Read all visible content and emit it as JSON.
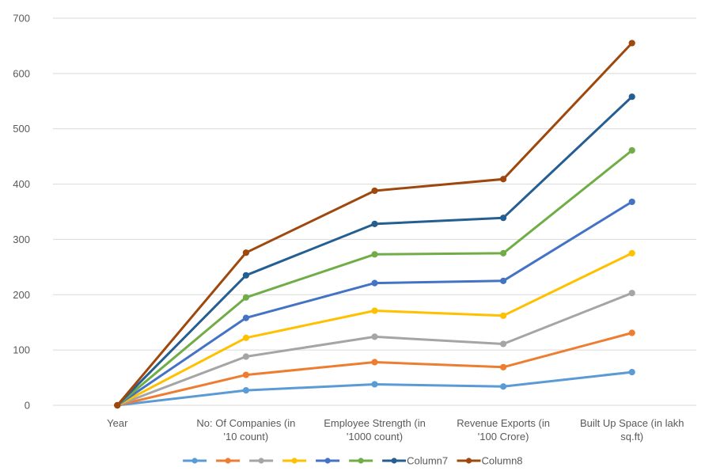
{
  "chart_data": {
    "type": "line",
    "title": "",
    "xlabel": "",
    "ylabel": "",
    "ylim": [
      0,
      700
    ],
    "yticks": [
      "0",
      "100",
      "200",
      "300",
      "400",
      "500",
      "600",
      "700"
    ],
    "grid": true,
    "legend_position": "bottom",
    "categories": [
      [
        "Year"
      ],
      [
        "No: Of Companies (in",
        "'10 count)"
      ],
      [
        "Employee Strength (in",
        "'1000 count)"
      ],
      [
        "Revenue Exports (in",
        "'100 Crore)"
      ],
      [
        "Built Up Space (in lakh",
        "sq.ft)"
      ]
    ],
    "series": [
      {
        "name": "",
        "color": "#5B9BD5",
        "values": [
          0,
          27,
          38,
          34,
          60
        ]
      },
      {
        "name": "",
        "color": "#ED7D31",
        "values": [
          0,
          55,
          78,
          69,
          131
        ]
      },
      {
        "name": "",
        "color": "#A5A5A5",
        "values": [
          0,
          88,
          124,
          111,
          203
        ]
      },
      {
        "name": "",
        "color": "#FFC000",
        "values": [
          0,
          122,
          171,
          162,
          275
        ]
      },
      {
        "name": "",
        "color": "#4472C4",
        "values": [
          0,
          158,
          221,
          225,
          368
        ]
      },
      {
        "name": "",
        "color": "#70AD47",
        "values": [
          0,
          195,
          273,
          275,
          461
        ]
      },
      {
        "name": "Column7",
        "color": "#255E91",
        "values": [
          0,
          235,
          328,
          339,
          558
        ]
      },
      {
        "name": "Column8",
        "color": "#9E480E",
        "values": [
          0,
          276,
          388,
          409,
          655
        ]
      }
    ]
  }
}
